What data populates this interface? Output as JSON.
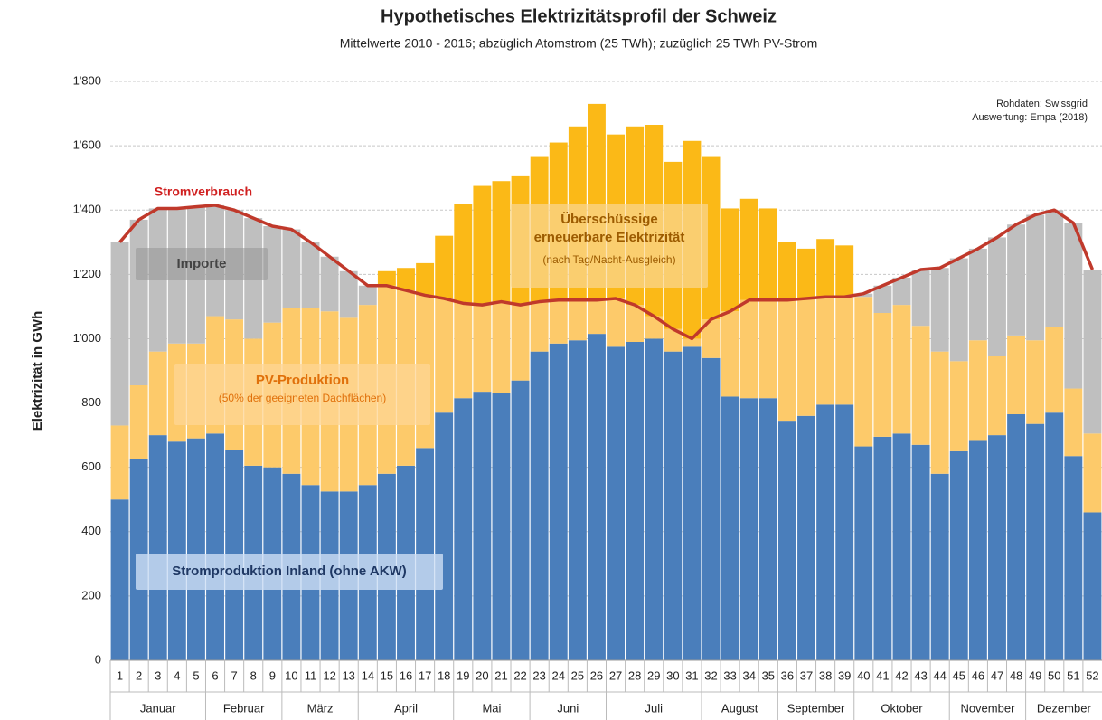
{
  "chart_data": {
    "type": "stacked_bar_line",
    "title": "Hypothetisches Elektrizitätsprofil der Schweiz",
    "subtitle": "Mittelwerte 2010 - 2016; abzüglich Atomstrom (25 TWh); zuzüglich 25 TWh PV-Strom",
    "y_label": "Elektrizität in GWh",
    "source": [
      "Rohdaten: Swissgrid",
      "Auswertung: Empa (2018)"
    ],
    "categories": [
      "1",
      "2",
      "3",
      "4",
      "5",
      "6",
      "7",
      "8",
      "9",
      "10",
      "11",
      "12",
      "13",
      "14",
      "15",
      "16",
      "17",
      "18",
      "19",
      "20",
      "21",
      "22",
      "23",
      "24",
      "25",
      "26",
      "27",
      "28",
      "29",
      "30",
      "31",
      "32",
      "33",
      "34",
      "35",
      "36",
      "37",
      "38",
      "39",
      "40",
      "41",
      "42",
      "43",
      "44",
      "45",
      "46",
      "47",
      "48",
      "49",
      "50",
      "51",
      "52"
    ],
    "months": [
      {
        "label": "Januar",
        "weeks": 5
      },
      {
        "label": "Februar",
        "weeks": 4
      },
      {
        "label": "März",
        "weeks": 4
      },
      {
        "label": "April",
        "weeks": 5
      },
      {
        "label": "Mai",
        "weeks": 4
      },
      {
        "label": "Juni",
        "weeks": 4
      },
      {
        "label": "Juli",
        "weeks": 5
      },
      {
        "label": "August",
        "weeks": 4
      },
      {
        "label": "September",
        "weeks": 4
      },
      {
        "label": "Oktober",
        "weeks": 5
      },
      {
        "label": "November",
        "weeks": 4
      },
      {
        "label": "Dezember",
        "weeks": 4
      }
    ],
    "ylim": [
      0,
      1800
    ],
    "yticks": [
      0,
      200,
      400,
      600,
      800,
      {
        "value": 1000,
        "label": "1'000"
      },
      {
        "value": 1200,
        "label": "1'200"
      },
      {
        "value": 1400,
        "label": "1'400"
      },
      {
        "value": 1600,
        "label": "1'600"
      },
      {
        "value": 1800,
        "label": "1'800"
      }
    ],
    "grid": true,
    "series": [
      {
        "name": "Stromproduktion Inland (ohne AKW)",
        "color": "#4a7ebb",
        "values": [
          500,
          625,
          700,
          680,
          690,
          705,
          655,
          605,
          600,
          580,
          545,
          525,
          525,
          545,
          580,
          605,
          660,
          770,
          815,
          835,
          830,
          870,
          960,
          985,
          995,
          1015,
          975,
          990,
          1000,
          960,
          975,
          940,
          820,
          815,
          815,
          745,
          760,
          795,
          795,
          665,
          695,
          705,
          670,
          580,
          650,
          685,
          700,
          765,
          735,
          770,
          635,
          460
        ]
      },
      {
        "name": "PV-Produktion",
        "subtitle": "(50% der geeigneten Dachflächen)",
        "color": "#fdca6a",
        "values": [
          230,
          230,
          260,
          305,
          295,
          365,
          405,
          395,
          450,
          515,
          550,
          560,
          540,
          560,
          585,
          545,
          475,
          355,
          295,
          270,
          285,
          235,
          155,
          135,
          125,
          105,
          150,
          115,
          70,
          70,
          25,
          120,
          265,
          305,
          305,
          375,
          365,
          335,
          335,
          465,
          385,
          400,
          370,
          380,
          280,
          310,
          245,
          245,
          260,
          265,
          210,
          245
        ]
      },
      {
        "name": "Überschüssige erneuerbare Elektrizität",
        "subtitle": "(nach Tag/Nacht-Ausgleich)",
        "color": "#fbb917",
        "values": [
          null,
          null,
          null,
          null,
          null,
          null,
          null,
          null,
          null,
          null,
          null,
          null,
          null,
          null,
          45,
          70,
          100,
          195,
          310,
          370,
          375,
          400,
          450,
          490,
          540,
          610,
          510,
          555,
          595,
          520,
          615,
          505,
          320,
          315,
          285,
          180,
          155,
          180,
          160,
          null,
          null,
          null,
          null,
          null,
          null,
          null,
          null,
          null,
          null,
          null,
          null,
          null
        ]
      },
      {
        "name": "Importe",
        "color": "#bfbfbf",
        "values": [
          570,
          515,
          445,
          420,
          425,
          345,
          340,
          375,
          300,
          245,
          205,
          170,
          145,
          60,
          null,
          null,
          null,
          null,
          null,
          null,
          null,
          null,
          null,
          null,
          null,
          null,
          null,
          null,
          null,
          null,
          null,
          null,
          null,
          null,
          null,
          null,
          null,
          null,
          null,
          10,
          85,
          85,
          175,
          260,
          320,
          285,
          370,
          345,
          390,
          365,
          515,
          510
        ]
      }
    ],
    "line": {
      "name": "Stromverbrauch",
      "color": "#c0392b",
      "values": [
        1300,
        1370,
        1405,
        1405,
        1410,
        1415,
        1400,
        1375,
        1350,
        1340,
        1300,
        1255,
        1210,
        1165,
        1165,
        1150,
        1135,
        1125,
        1110,
        1105,
        1115,
        1105,
        1115,
        1120,
        1120,
        1120,
        1125,
        1105,
        1070,
        1030,
        1000,
        1060,
        1085,
        1120,
        1120,
        1120,
        1125,
        1130,
        1130,
        1140,
        1165,
        1190,
        1215,
        1220,
        1250,
        1280,
        1315,
        1355,
        1385,
        1400,
        1360,
        1215
      ]
    }
  }
}
